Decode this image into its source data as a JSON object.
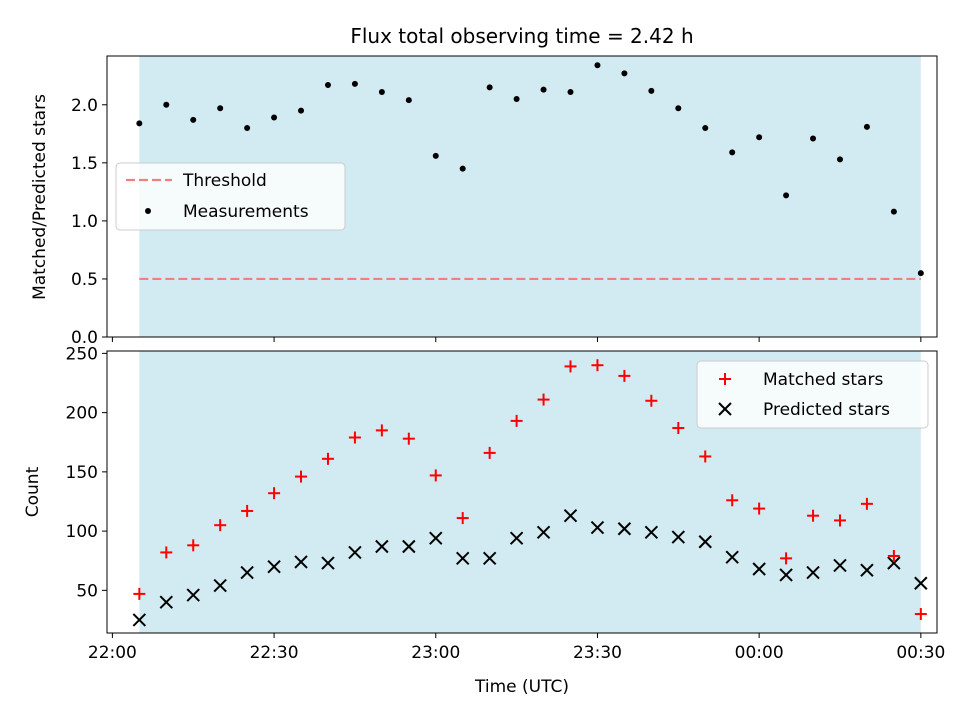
{
  "title": "Flux total observing time = 2.42 h",
  "colors": {
    "span_fill": "#add8e6",
    "threshold": "#f08080",
    "measurements": "#000000",
    "matched": "#ff0000",
    "predicted": "#000000"
  },
  "chart_data": [
    {
      "type": "scatter",
      "ylabel": "Matched/Predicted stars",
      "ylim": [
        0,
        2.42
      ],
      "yticks": [
        "0.0",
        "0.5",
        "1.0",
        "1.5",
        "2.0"
      ],
      "ytick_values": [
        0,
        0.5,
        1.0,
        1.5,
        2.0
      ],
      "legend": {
        "placement": "center-left",
        "entries": [
          "Threshold",
          "Measurements"
        ]
      },
      "shaded_span": [
        "22:05",
        "00:30"
      ],
      "threshold": {
        "name": "Threshold",
        "value": 0.5,
        "x_range": [
          "22:05",
          "00:30"
        ]
      },
      "series": [
        {
          "name": "Measurements",
          "x": [
            "22:05",
            "22:10",
            "22:15",
            "22:20",
            "22:25",
            "22:30",
            "22:35",
            "22:40",
            "22:45",
            "22:50",
            "22:55",
            "23:00",
            "23:05",
            "23:10",
            "23:15",
            "23:20",
            "23:25",
            "23:30",
            "23:35",
            "23:40",
            "23:45",
            "23:50",
            "23:55",
            "00:00",
            "00:05",
            "00:10",
            "00:15",
            "00:20",
            "00:25",
            "00:30"
          ],
          "values": [
            1.84,
            2.0,
            1.87,
            1.97,
            1.8,
            1.89,
            1.95,
            2.17,
            2.18,
            2.11,
            2.04,
            1.56,
            1.45,
            2.15,
            2.05,
            2.13,
            2.11,
            2.34,
            2.27,
            2.12,
            1.97,
            1.8,
            1.59,
            1.72,
            1.22,
            1.71,
            1.53,
            1.81,
            1.08,
            0.55
          ]
        }
      ]
    },
    {
      "type": "scatter",
      "xlabel": "Time (UTC)",
      "ylabel": "Count",
      "ylim": [
        14,
        252
      ],
      "yticks": [
        "50",
        "100",
        "150",
        "200",
        "250"
      ],
      "ytick_values": [
        50,
        100,
        150,
        200,
        250
      ],
      "xticks": [
        "22:00",
        "22:30",
        "23:00",
        "23:30",
        "00:00",
        "00:30"
      ],
      "xlim": [
        "21:59",
        "00:33"
      ],
      "legend": {
        "placement": "top-right",
        "entries": [
          "Matched stars",
          "Predicted stars"
        ]
      },
      "shaded_span": [
        "22:05",
        "00:30"
      ],
      "series": [
        {
          "name": "Matched stars",
          "x": [
            "22:05",
            "22:10",
            "22:15",
            "22:20",
            "22:25",
            "22:30",
            "22:35",
            "22:40",
            "22:45",
            "22:50",
            "22:55",
            "23:00",
            "23:05",
            "23:10",
            "23:15",
            "23:20",
            "23:25",
            "23:30",
            "23:35",
            "23:40",
            "23:45",
            "23:50",
            "23:55",
            "00:00",
            "00:05",
            "00:10",
            "00:15",
            "00:20",
            "00:25",
            "00:30"
          ],
          "values": [
            47,
            82,
            88,
            105,
            117,
            132,
            146,
            161,
            179,
            185,
            178,
            147,
            111,
            166,
            193,
            211,
            239,
            240,
            231,
            210,
            187,
            163,
            126,
            119,
            77,
            113,
            109,
            123,
            79,
            30
          ]
        },
        {
          "name": "Predicted stars",
          "x": [
            "22:05",
            "22:10",
            "22:15",
            "22:20",
            "22:25",
            "22:30",
            "22:35",
            "22:40",
            "22:45",
            "22:50",
            "22:55",
            "23:00",
            "23:05",
            "23:10",
            "23:15",
            "23:20",
            "23:25",
            "23:30",
            "23:35",
            "23:40",
            "23:45",
            "23:50",
            "23:55",
            "00:00",
            "00:05",
            "00:10",
            "00:15",
            "00:20",
            "00:25",
            "00:30"
          ],
          "values": [
            25,
            40,
            46,
            54,
            65,
            70,
            74,
            73,
            82,
            87,
            87,
            94,
            77,
            77,
            94,
            99,
            113,
            103,
            102,
            99,
            95,
            91,
            78,
            68,
            63,
            65,
            71,
            67,
            73,
            56
          ]
        }
      ]
    }
  ]
}
